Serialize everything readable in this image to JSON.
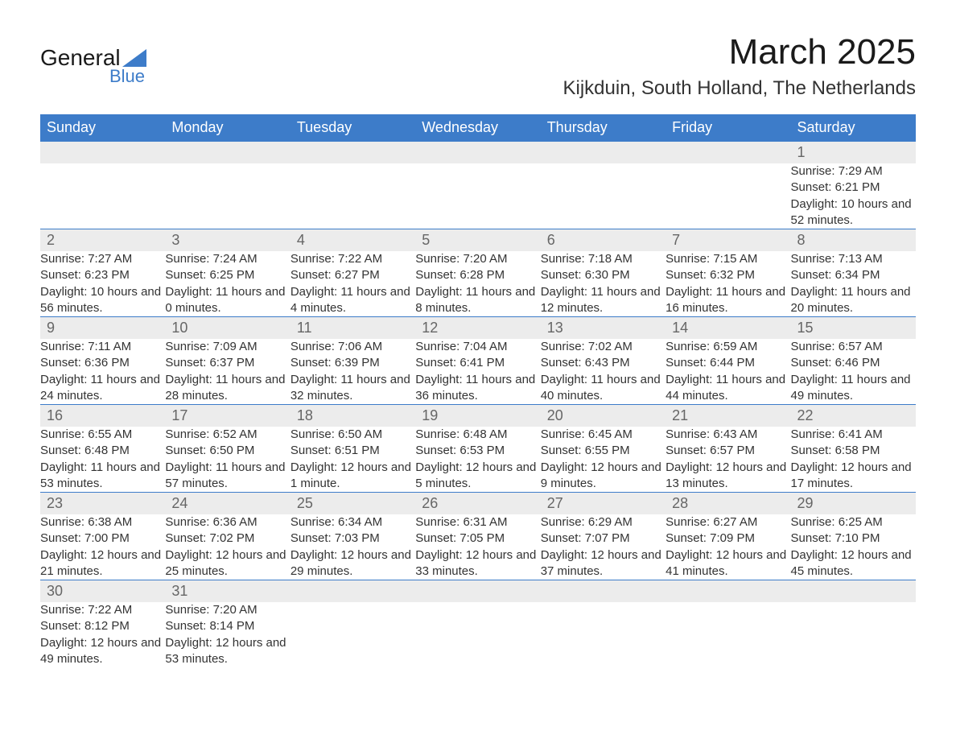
{
  "logo": {
    "word1": "General",
    "word2": "Blue",
    "triangle_color": "#3d7cc9"
  },
  "title": "March 2025",
  "location": "Kijkduin, South Holland, The Netherlands",
  "header_color": "#3d7cc9",
  "daynum_bg": "#ececec",
  "weekdays": [
    "Sunday",
    "Monday",
    "Tuesday",
    "Wednesday",
    "Thursday",
    "Friday",
    "Saturday"
  ],
  "weeks": [
    {
      "nums": [
        "",
        "",
        "",
        "",
        "",
        "",
        "1"
      ],
      "cells": [
        null,
        null,
        null,
        null,
        null,
        null,
        {
          "sunrise": "7:29 AM",
          "sunset": "6:21 PM",
          "daylight": "10 hours and 52 minutes."
        }
      ]
    },
    {
      "nums": [
        "2",
        "3",
        "4",
        "5",
        "6",
        "7",
        "8"
      ],
      "cells": [
        {
          "sunrise": "7:27 AM",
          "sunset": "6:23 PM",
          "daylight": "10 hours and 56 minutes."
        },
        {
          "sunrise": "7:24 AM",
          "sunset": "6:25 PM",
          "daylight": "11 hours and 0 minutes."
        },
        {
          "sunrise": "7:22 AM",
          "sunset": "6:27 PM",
          "daylight": "11 hours and 4 minutes."
        },
        {
          "sunrise": "7:20 AM",
          "sunset": "6:28 PM",
          "daylight": "11 hours and 8 minutes."
        },
        {
          "sunrise": "7:18 AM",
          "sunset": "6:30 PM",
          "daylight": "11 hours and 12 minutes."
        },
        {
          "sunrise": "7:15 AM",
          "sunset": "6:32 PM",
          "daylight": "11 hours and 16 minutes."
        },
        {
          "sunrise": "7:13 AM",
          "sunset": "6:34 PM",
          "daylight": "11 hours and 20 minutes."
        }
      ]
    },
    {
      "nums": [
        "9",
        "10",
        "11",
        "12",
        "13",
        "14",
        "15"
      ],
      "cells": [
        {
          "sunrise": "7:11 AM",
          "sunset": "6:36 PM",
          "daylight": "11 hours and 24 minutes."
        },
        {
          "sunrise": "7:09 AM",
          "sunset": "6:37 PM",
          "daylight": "11 hours and 28 minutes."
        },
        {
          "sunrise": "7:06 AM",
          "sunset": "6:39 PM",
          "daylight": "11 hours and 32 minutes."
        },
        {
          "sunrise": "7:04 AM",
          "sunset": "6:41 PM",
          "daylight": "11 hours and 36 minutes."
        },
        {
          "sunrise": "7:02 AM",
          "sunset": "6:43 PM",
          "daylight": "11 hours and 40 minutes."
        },
        {
          "sunrise": "6:59 AM",
          "sunset": "6:44 PM",
          "daylight": "11 hours and 44 minutes."
        },
        {
          "sunrise": "6:57 AM",
          "sunset": "6:46 PM",
          "daylight": "11 hours and 49 minutes."
        }
      ]
    },
    {
      "nums": [
        "16",
        "17",
        "18",
        "19",
        "20",
        "21",
        "22"
      ],
      "cells": [
        {
          "sunrise": "6:55 AM",
          "sunset": "6:48 PM",
          "daylight": "11 hours and 53 minutes."
        },
        {
          "sunrise": "6:52 AM",
          "sunset": "6:50 PM",
          "daylight": "11 hours and 57 minutes."
        },
        {
          "sunrise": "6:50 AM",
          "sunset": "6:51 PM",
          "daylight": "12 hours and 1 minute."
        },
        {
          "sunrise": "6:48 AM",
          "sunset": "6:53 PM",
          "daylight": "12 hours and 5 minutes."
        },
        {
          "sunrise": "6:45 AM",
          "sunset": "6:55 PM",
          "daylight": "12 hours and 9 minutes."
        },
        {
          "sunrise": "6:43 AM",
          "sunset": "6:57 PM",
          "daylight": "12 hours and 13 minutes."
        },
        {
          "sunrise": "6:41 AM",
          "sunset": "6:58 PM",
          "daylight": "12 hours and 17 minutes."
        }
      ]
    },
    {
      "nums": [
        "23",
        "24",
        "25",
        "26",
        "27",
        "28",
        "29"
      ],
      "cells": [
        {
          "sunrise": "6:38 AM",
          "sunset": "7:00 PM",
          "daylight": "12 hours and 21 minutes."
        },
        {
          "sunrise": "6:36 AM",
          "sunset": "7:02 PM",
          "daylight": "12 hours and 25 minutes."
        },
        {
          "sunrise": "6:34 AM",
          "sunset": "7:03 PM",
          "daylight": "12 hours and 29 minutes."
        },
        {
          "sunrise": "6:31 AM",
          "sunset": "7:05 PM",
          "daylight": "12 hours and 33 minutes."
        },
        {
          "sunrise": "6:29 AM",
          "sunset": "7:07 PM",
          "daylight": "12 hours and 37 minutes."
        },
        {
          "sunrise": "6:27 AM",
          "sunset": "7:09 PM",
          "daylight": "12 hours and 41 minutes."
        },
        {
          "sunrise": "6:25 AM",
          "sunset": "7:10 PM",
          "daylight": "12 hours and 45 minutes."
        }
      ]
    },
    {
      "nums": [
        "30",
        "31",
        "",
        "",
        "",
        "",
        ""
      ],
      "cells": [
        {
          "sunrise": "7:22 AM",
          "sunset": "8:12 PM",
          "daylight": "12 hours and 49 minutes."
        },
        {
          "sunrise": "7:20 AM",
          "sunset": "8:14 PM",
          "daylight": "12 hours and 53 minutes."
        },
        null,
        null,
        null,
        null,
        null
      ]
    }
  ],
  "labels": {
    "sunrise": "Sunrise: ",
    "sunset": "Sunset: ",
    "daylight": "Daylight: "
  }
}
